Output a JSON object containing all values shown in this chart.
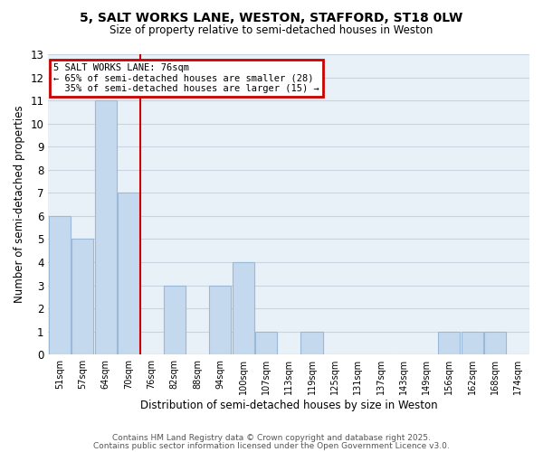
{
  "title1": "5, SALT WORKS LANE, WESTON, STAFFORD, ST18 0LW",
  "title2": "Size of property relative to semi-detached houses in Weston",
  "xlabel": "Distribution of semi-detached houses by size in Weston",
  "ylabel": "Number of semi-detached properties",
  "categories": [
    "51sqm",
    "57sqm",
    "64sqm",
    "70sqm",
    "76sqm",
    "82sqm",
    "88sqm",
    "94sqm",
    "100sqm",
    "107sqm",
    "113sqm",
    "119sqm",
    "125sqm",
    "131sqm",
    "137sqm",
    "143sqm",
    "149sqm",
    "156sqm",
    "162sqm",
    "168sqm",
    "174sqm"
  ],
  "values": [
    6,
    5,
    11,
    7,
    0,
    3,
    0,
    3,
    4,
    1,
    0,
    1,
    0,
    0,
    0,
    0,
    0,
    1,
    1,
    1,
    0
  ],
  "bar_color": "#c5d9ee",
  "bar_edge_color": "#9ab8d8",
  "vline_x_between": 3.5,
  "vline_color": "#cc0000",
  "annotation_text": "5 SALT WORKS LANE: 76sqm\n← 65% of semi-detached houses are smaller (28)\n  35% of semi-detached houses are larger (15) →",
  "annotation_box_color": "#cc0000",
  "ylim": [
    0,
    13
  ],
  "yticks": [
    0,
    1,
    2,
    3,
    4,
    5,
    6,
    7,
    8,
    9,
    10,
    11,
    12,
    13
  ],
  "plot_bg_color": "#e8f0f8",
  "fig_bg_color": "#ffffff",
  "grid_color": "#c8d4e0",
  "footer1": "Contains HM Land Registry data © Crown copyright and database right 2025.",
  "footer2": "Contains public sector information licensed under the Open Government Licence v3.0."
}
